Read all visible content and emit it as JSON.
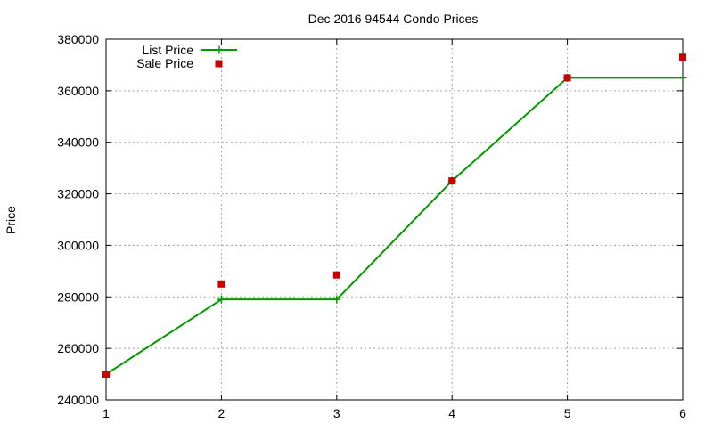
{
  "chart_data": {
    "type": "line",
    "title": "Dec 2016 94544 Condo Prices",
    "xlabel": "",
    "ylabel": "Price",
    "xlim": [
      1,
      6
    ],
    "ylim": [
      240000,
      380000
    ],
    "x_ticks": [
      1,
      2,
      3,
      4,
      5,
      6
    ],
    "y_ticks": [
      240000,
      260000,
      280000,
      300000,
      320000,
      340000,
      360000,
      380000
    ],
    "grid": true,
    "legend_position": "top-left",
    "series": [
      {
        "name": "List Price",
        "style": "line-with-plus-markers",
        "color": "#009900",
        "x": [
          1,
          2,
          3,
          4,
          5,
          6
        ],
        "values": [
          250000,
          279000,
          279000,
          325000,
          365000,
          365000
        ]
      },
      {
        "name": "Sale Price",
        "style": "square-points",
        "color": "#cc0000",
        "x": [
          1,
          2,
          3,
          4,
          5,
          6
        ],
        "values": [
          250000,
          285000,
          288500,
          325000,
          365000,
          373000
        ]
      }
    ]
  }
}
